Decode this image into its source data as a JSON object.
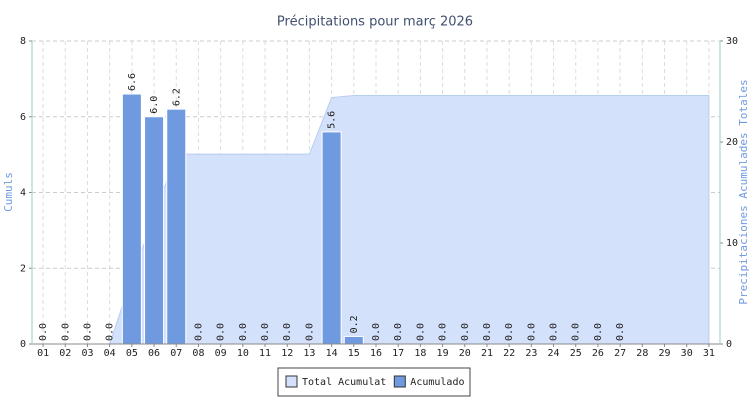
{
  "chart_data": {
    "type": "bar",
    "title": "Précipitations pour març 2026",
    "ylabel": "Cumuls",
    "y2label": "Precipitaciones Acumulades Totales",
    "categories": [
      "01",
      "02",
      "03",
      "04",
      "05",
      "06",
      "07",
      "08",
      "09",
      "10",
      "11",
      "12",
      "13",
      "14",
      "15",
      "16",
      "17",
      "18",
      "19",
      "20",
      "21",
      "22",
      "23",
      "24",
      "25",
      "26",
      "27",
      "28",
      "29",
      "30",
      "31"
    ],
    "series": [
      {
        "name": "Total Acumulat",
        "type": "area",
        "axis": "y2",
        "color": "#d4e1fa",
        "values": [
          0,
          0,
          0,
          0,
          6.6,
          12.6,
          18.8,
          18.8,
          18.8,
          18.8,
          18.8,
          18.8,
          18.8,
          24.4,
          24.6,
          24.6,
          24.6,
          24.6,
          24.6,
          24.6,
          24.6,
          24.6,
          24.6,
          24.6,
          24.6,
          24.6,
          24.6,
          24.6,
          24.6,
          24.6,
          24.6
        ]
      },
      {
        "name": "Acumulado",
        "type": "bar",
        "color": "#6f9ae0",
        "values": [
          0,
          0,
          0,
          0,
          6.6,
          6.0,
          6.2,
          0,
          0,
          0,
          0,
          0,
          0,
          5.6,
          0.2,
          0,
          0,
          0,
          0,
          0,
          0,
          0,
          0,
          0,
          0,
          0,
          0,
          null,
          null,
          null,
          null
        ],
        "value_labels": [
          "0.0",
          "0.0",
          "0.0",
          "0.0",
          "6.6",
          "6.0",
          "6.2",
          "0.0",
          "0.0",
          "0.0",
          "0.0",
          "0.0",
          "0.0",
          "5.6",
          "0.2",
          "0.0",
          "0.0",
          "0.0",
          "0.0",
          "0.0",
          "0.0",
          "0.0",
          "0.0",
          "0.0",
          "0.0",
          "0.0",
          "0.0",
          null,
          null,
          null,
          null
        ]
      }
    ],
    "ylim": [
      0,
      8
    ],
    "yticks": [
      0,
      2,
      4,
      6,
      8
    ],
    "y2lim": [
      0,
      30
    ],
    "y2ticks": [
      0,
      10,
      20,
      30
    ],
    "grid": true,
    "legend": "bottom"
  }
}
